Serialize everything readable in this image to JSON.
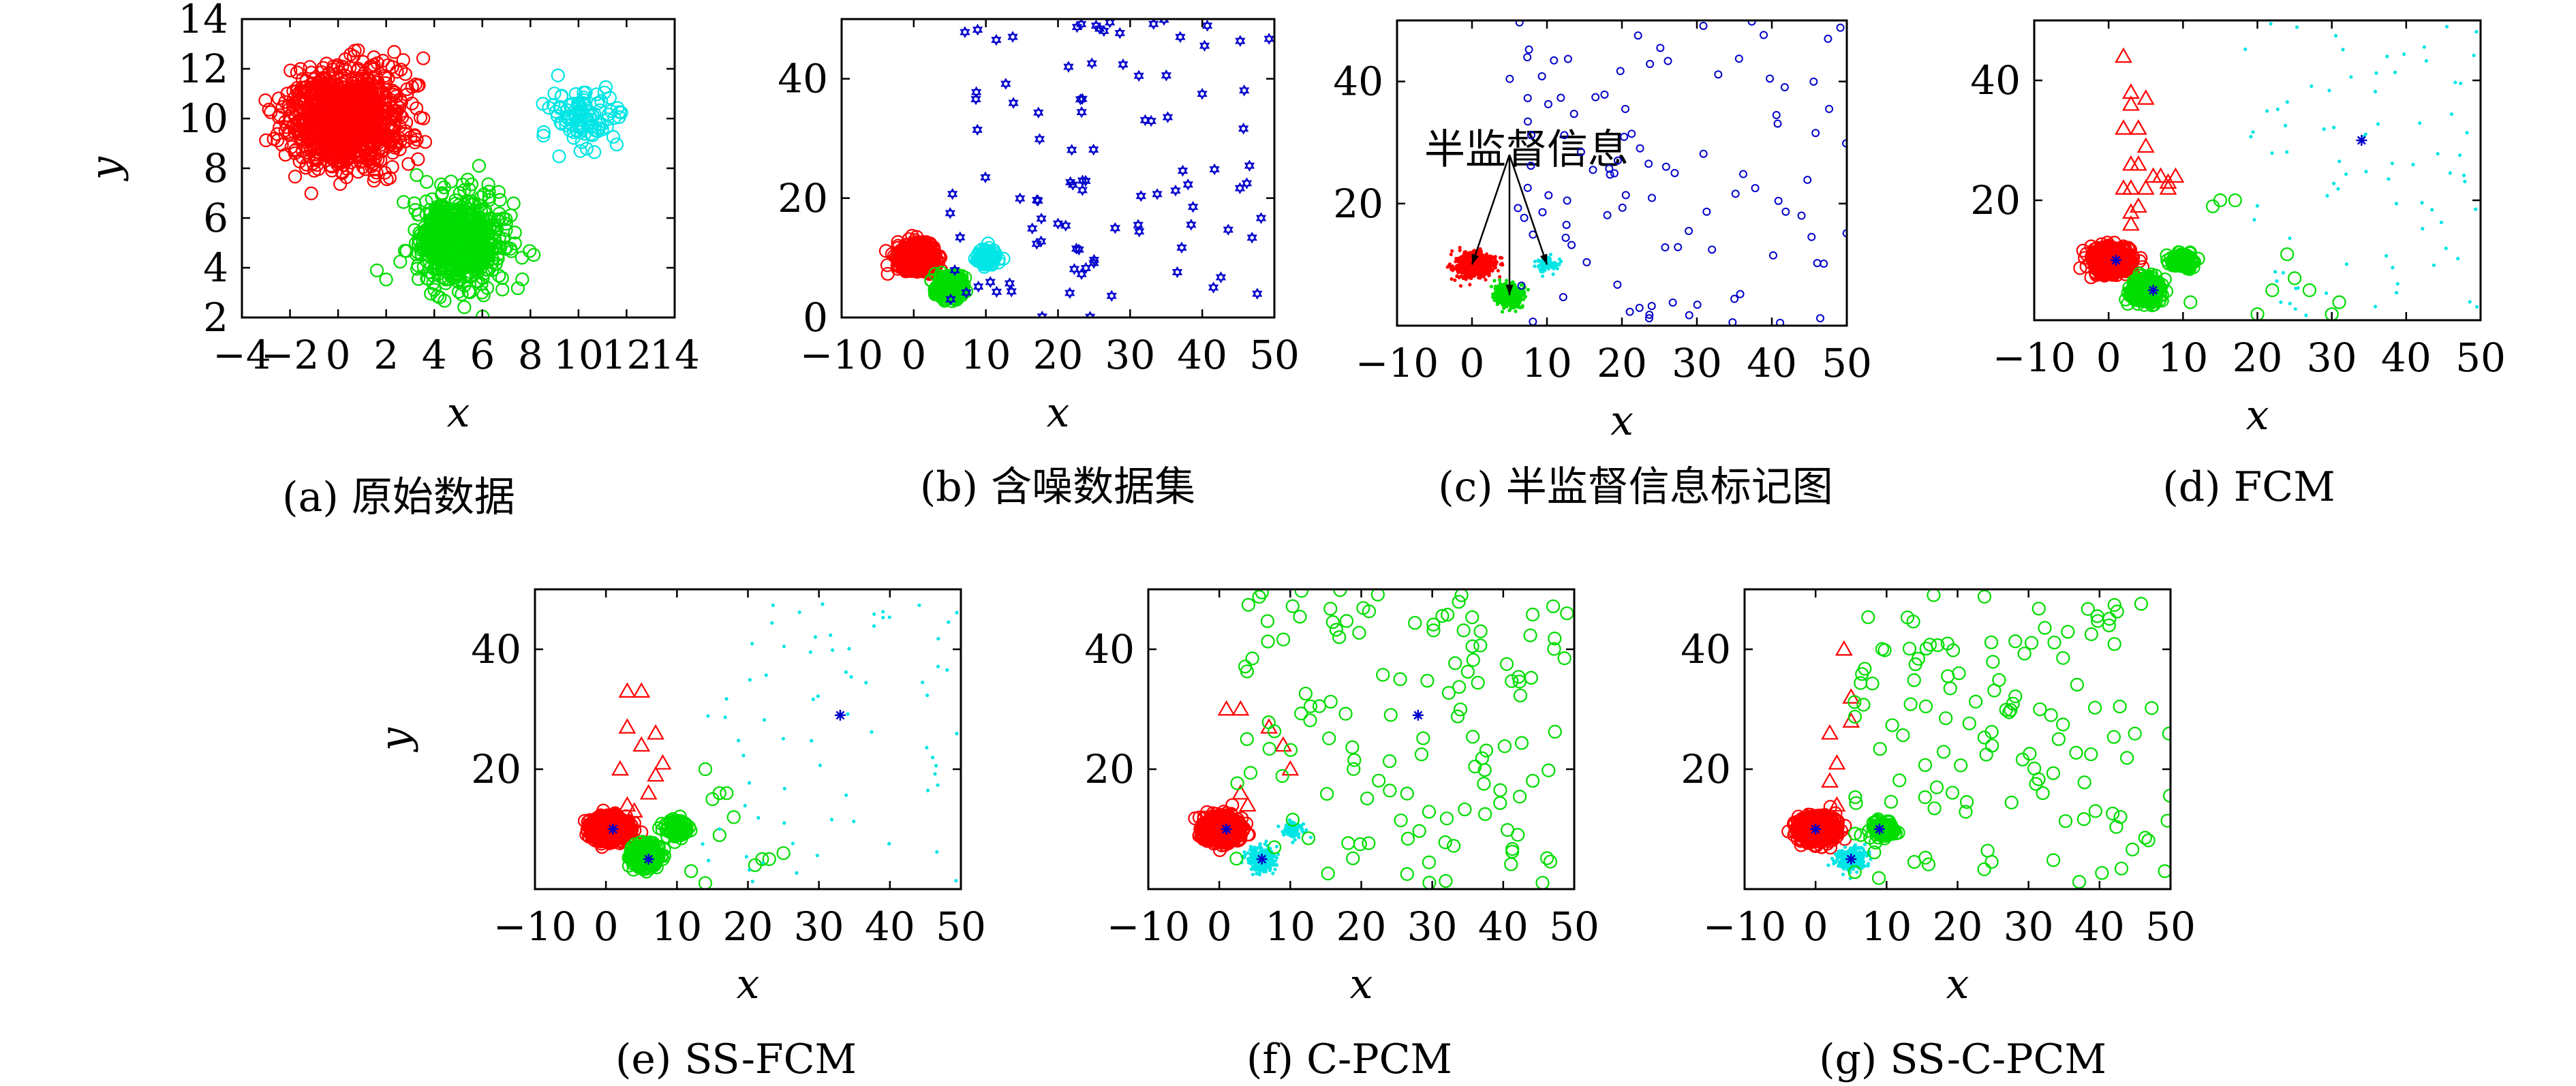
{
  "figure": {
    "panels": [
      {
        "id": "a",
        "caption": "(a) 原始数据",
        "xlabel": "x",
        "ylabel": "y"
      },
      {
        "id": "b",
        "caption": "(b) 含噪数据集",
        "xlabel": "x",
        "ylabel": ""
      },
      {
        "id": "c",
        "caption": "(c) 半监督信息标记图",
        "xlabel": "x",
        "ylabel": "",
        "annotation": "半监督信息"
      },
      {
        "id": "d",
        "caption": "(d) FCM",
        "xlabel": "x",
        "ylabel": ""
      },
      {
        "id": "e",
        "caption": "(e) SS-FCM",
        "xlabel": "x",
        "ylabel": "y"
      },
      {
        "id": "f",
        "caption": "(f) C-PCM",
        "xlabel": "x",
        "ylabel": ""
      },
      {
        "id": "g",
        "caption": "(g) SS-C-PCM",
        "xlabel": "x",
        "ylabel": ""
      }
    ]
  },
  "colors": {
    "red": "#ff0000",
    "green": "#00dd00",
    "cyan": "#00e5e5",
    "blue": "#0000cc",
    "axis": "#000000"
  },
  "chart_data": [
    {
      "id": "a",
      "type": "scatter",
      "title": "",
      "xlabel": "x",
      "ylabel": "y",
      "xlim": [
        -4,
        14
      ],
      "ylim": [
        2,
        14
      ],
      "xticks": [
        -4,
        -2,
        0,
        2,
        4,
        6,
        8,
        10,
        12,
        14
      ],
      "yticks": [
        2,
        4,
        6,
        8,
        10,
        12,
        14
      ],
      "series": [
        {
          "color": "red",
          "marker": "circle",
          "center": [
            0.3,
            10
          ],
          "spread": [
            1.2,
            1.0
          ],
          "n": 1000
        },
        {
          "color": "green",
          "marker": "circle",
          "center": [
            5,
            5
          ],
          "spread": [
            0.9,
            0.9
          ],
          "n": 700
        },
        {
          "color": "cyan",
          "marker": "circle",
          "center": [
            10.3,
            10
          ],
          "spread": [
            0.7,
            0.6
          ],
          "n": 100
        }
      ],
      "centroids": []
    },
    {
      "id": "b",
      "type": "scatter",
      "title": "",
      "xlabel": "x",
      "ylabel": "",
      "xlim": [
        -10,
        50
      ],
      "ylim": [
        0,
        50
      ],
      "xticks": [
        -10,
        0,
        10,
        20,
        30,
        40,
        50
      ],
      "yticks": [
        0,
        20,
        40
      ],
      "series": [
        {
          "color": "red",
          "marker": "circle",
          "center": [
            0.3,
            10
          ],
          "spread": [
            1.2,
            1.0
          ],
          "n": 800
        },
        {
          "color": "green",
          "marker": "circle",
          "center": [
            5,
            5
          ],
          "spread": [
            0.9,
            0.9
          ],
          "n": 500
        },
        {
          "color": "cyan",
          "marker": "circle",
          "center": [
            10,
            10
          ],
          "spread": [
            0.8,
            0.7
          ],
          "n": 90
        },
        {
          "color": "blue",
          "marker": "star",
          "noise": true,
          "xrange": [
            5,
            50
          ],
          "yrange": [
            0,
            50
          ],
          "n": 100
        }
      ],
      "centroids": []
    },
    {
      "id": "c",
      "type": "scatter",
      "title": "",
      "xlabel": "x",
      "ylabel": "",
      "xlim": [
        -10,
        50
      ],
      "ylim": [
        0,
        50
      ],
      "xticks": [
        -10,
        0,
        10,
        20,
        30,
        40,
        50
      ],
      "yticks": [
        20,
        40
      ],
      "series": [
        {
          "color": "red",
          "marker": "dot",
          "center": [
            0.3,
            10
          ],
          "spread": [
            1.2,
            1.0
          ],
          "n": 800
        },
        {
          "color": "green",
          "marker": "dot",
          "center": [
            5,
            5
          ],
          "spread": [
            0.9,
            0.9
          ],
          "n": 500
        },
        {
          "color": "cyan",
          "marker": "dot",
          "center": [
            10,
            10
          ],
          "spread": [
            0.8,
            0.7
          ],
          "n": 90
        },
        {
          "color": "blue",
          "marker": "smallcircle",
          "noise": true,
          "xrange": [
            5,
            50
          ],
          "yrange": [
            0,
            50
          ],
          "n": 100
        }
      ],
      "centroids": [],
      "arrow_targets": [
        [
          0,
          10
        ],
        [
          5,
          5
        ],
        [
          10,
          10
        ]
      ],
      "arrow_origin": [
        5,
        28
      ]
    },
    {
      "id": "d",
      "type": "scatter",
      "title": "",
      "xlabel": "x",
      "ylabel": "",
      "xlim": [
        -10,
        50
      ],
      "ylim": [
        0,
        50
      ],
      "xticks": [
        -10,
        0,
        10,
        20,
        30,
        40,
        50
      ],
      "yticks": [
        20,
        40
      ],
      "series": [
        {
          "color": "red",
          "marker": "circle",
          "center": [
            0.3,
            10
          ],
          "spread": [
            1.2,
            1.0
          ],
          "n": 800
        },
        {
          "color": "green",
          "marker": "circle",
          "center": [
            5,
            5
          ],
          "spread": [
            0.9,
            0.9
          ],
          "n": 500
        },
        {
          "color": "green",
          "marker": "circle",
          "center": [
            10,
            10
          ],
          "spread": [
            0.8,
            0.7
          ],
          "n": 90
        },
        {
          "color": "red",
          "marker": "triangle",
          "points": [
            [
              2,
              44
            ],
            [
              3,
              38
            ],
            [
              3,
              36
            ],
            [
              4,
              32
            ],
            [
              5,
              37
            ],
            [
              2,
              32
            ],
            [
              3,
              26
            ],
            [
              4,
              26
            ],
            [
              3,
              22
            ],
            [
              5,
              22
            ],
            [
              4,
              19
            ],
            [
              3,
              18
            ],
            [
              8,
              23
            ],
            [
              9,
              24
            ],
            [
              8,
              22
            ],
            [
              6,
              24
            ],
            [
              5,
              29
            ],
            [
              2,
              22
            ],
            [
              7,
              24
            ],
            [
              3,
              16
            ]
          ]
        },
        {
          "color": "green",
          "marker": "circle",
          "points": [
            [
              14,
              19
            ],
            [
              15,
              20
            ],
            [
              17,
              20
            ],
            [
              24,
              11
            ],
            [
              22,
              5
            ],
            [
              25,
              7
            ],
            [
              27,
              5
            ],
            [
              30,
              1
            ],
            [
              31,
              3
            ],
            [
              20,
              1
            ],
            [
              11,
              3
            ]
          ]
        },
        {
          "color": "cyan",
          "marker": "dot",
          "noise": true,
          "xrange": [
            18,
            50
          ],
          "yrange": [
            0,
            50
          ],
          "n": 80
        }
      ],
      "centroids": [
        [
          1,
          10
        ],
        [
          6,
          5
        ],
        [
          34,
          30
        ]
      ]
    },
    {
      "id": "e",
      "type": "scatter",
      "title": "",
      "xlabel": "x",
      "ylabel": "y",
      "xlim": [
        -10,
        50
      ],
      "ylim": [
        0,
        50
      ],
      "xticks": [
        -10,
        0,
        10,
        20,
        30,
        40,
        50
      ],
      "yticks": [
        20,
        40
      ],
      "series": [
        {
          "color": "red",
          "marker": "circle",
          "center": [
            0.3,
            10
          ],
          "spread": [
            1.2,
            1.0
          ],
          "n": 800
        },
        {
          "color": "green",
          "marker": "circle",
          "center": [
            5.5,
            5.5
          ],
          "spread": [
            0.9,
            0.9
          ],
          "n": 500
        },
        {
          "color": "green",
          "marker": "circle",
          "center": [
            10,
            10
          ],
          "spread": [
            0.8,
            0.7
          ],
          "n": 90
        },
        {
          "color": "red",
          "marker": "triangle",
          "points": [
            [
              3,
              33
            ],
            [
              5,
              33
            ],
            [
              3,
              27
            ],
            [
              7,
              26
            ],
            [
              5,
              24
            ],
            [
              8,
              21
            ],
            [
              7,
              19
            ],
            [
              2,
              20
            ],
            [
              6,
              16
            ],
            [
              3,
              14
            ],
            [
              4,
              13
            ]
          ]
        },
        {
          "color": "green",
          "marker": "circle",
          "points": [
            [
              14,
              20
            ],
            [
              15,
              15
            ],
            [
              16,
              16
            ],
            [
              17,
              16
            ],
            [
              16,
              9
            ],
            [
              18,
              12
            ],
            [
              22,
              5
            ],
            [
              23,
              5
            ],
            [
              25,
              6
            ],
            [
              21,
              4
            ],
            [
              12,
              3
            ],
            [
              14,
              1
            ]
          ]
        },
        {
          "color": "cyan",
          "marker": "dot",
          "noise": true,
          "xrange": [
            13,
            50
          ],
          "yrange": [
            0,
            48
          ],
          "n": 70
        }
      ],
      "centroids": [
        [
          1,
          10
        ],
        [
          6,
          5
        ],
        [
          33,
          29
        ]
      ]
    },
    {
      "id": "f",
      "type": "scatter",
      "title": "",
      "xlabel": "x",
      "ylabel": "",
      "xlim": [
        -10,
        50
      ],
      "ylim": [
        0,
        50
      ],
      "xticks": [
        -10,
        0,
        10,
        20,
        30,
        40,
        50
      ],
      "yticks": [
        20,
        40
      ],
      "series": [
        {
          "color": "red",
          "marker": "circle",
          "center": [
            0.3,
            10
          ],
          "spread": [
            1.2,
            1.0
          ],
          "n": 800
        },
        {
          "color": "cyan",
          "marker": "dot",
          "center": [
            6,
            5
          ],
          "spread": [
            0.9,
            0.9
          ],
          "n": 400
        },
        {
          "color": "cyan",
          "marker": "dot",
          "center": [
            10.5,
            10
          ],
          "spread": [
            0.8,
            0.7
          ],
          "n": 90
        },
        {
          "color": "red",
          "marker": "triangle",
          "points": [
            [
              1,
              30
            ],
            [
              3,
              30
            ],
            [
              7,
              27
            ],
            [
              9,
              24
            ],
            [
              10,
              20
            ],
            [
              3,
              16
            ],
            [
              4,
              14
            ]
          ]
        },
        {
          "color": "green",
          "marker": "circle",
          "noise": true,
          "xrange": [
            2,
            50
          ],
          "yrange": [
            1,
            50
          ],
          "n": 130
        }
      ],
      "centroids": [
        [
          1,
          10
        ],
        [
          6,
          5
        ],
        [
          28,
          29
        ]
      ]
    },
    {
      "id": "g",
      "type": "scatter",
      "title": "",
      "xlabel": "x",
      "ylabel": "",
      "xlim": [
        -10,
        50
      ],
      "ylim": [
        0,
        50
      ],
      "xticks": [
        -10,
        0,
        10,
        20,
        30,
        40,
        50
      ],
      "yticks": [
        20,
        40
      ],
      "series": [
        {
          "color": "red",
          "marker": "circle",
          "center": [
            0.3,
            10
          ],
          "spread": [
            1.2,
            1.0
          ],
          "n": 800
        },
        {
          "color": "cyan",
          "marker": "dot",
          "center": [
            5,
            5
          ],
          "spread": [
            0.9,
            0.9
          ],
          "n": 400
        },
        {
          "color": "green",
          "marker": "circle",
          "center": [
            9.5,
            10
          ],
          "spread": [
            0.8,
            0.7
          ],
          "n": 90
        },
        {
          "color": "red",
          "marker": "triangle",
          "points": [
            [
              4,
              40
            ],
            [
              5,
              32
            ],
            [
              5,
              28
            ],
            [
              2,
              26
            ],
            [
              3,
              21
            ],
            [
              2,
              18
            ],
            [
              3,
              14
            ]
          ]
        },
        {
          "color": "green",
          "marker": "circle",
          "noise": true,
          "xrange": [
            5,
            50
          ],
          "yrange": [
            1,
            50
          ],
          "n": 130
        }
      ],
      "centroids": [
        [
          0,
          10
        ],
        [
          9,
          10
        ],
        [
          5,
          5
        ]
      ]
    }
  ]
}
